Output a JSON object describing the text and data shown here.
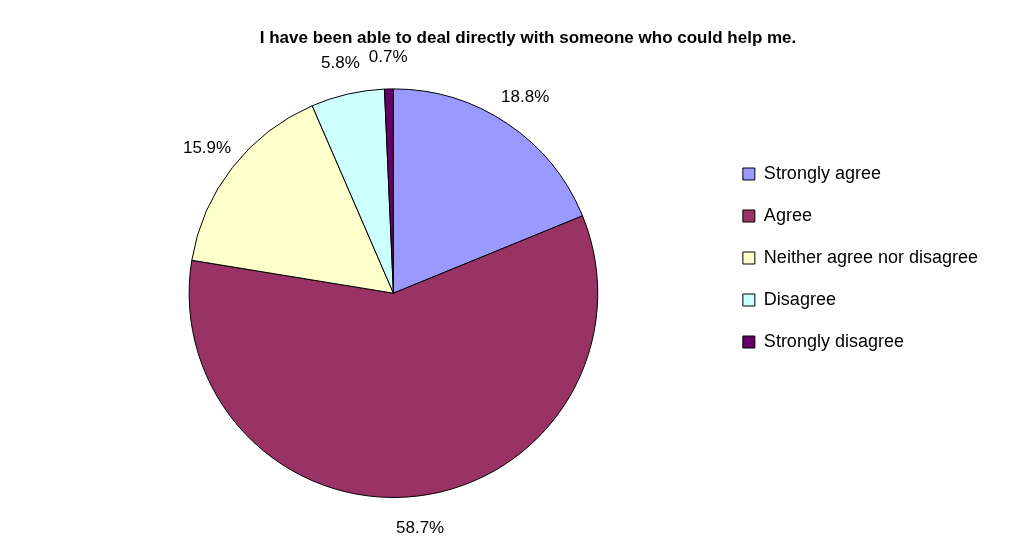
{
  "chart_data": {
    "type": "pie",
    "title": "I have been able to deal directly with someone who could help me.",
    "categories": [
      "Strongly agree",
      "Agree",
      "Neither agree nor disagree",
      "Disagree",
      "Strongly disagree"
    ],
    "values": [
      18.8,
      58.7,
      15.9,
      5.8,
      0.7
    ],
    "value_labels": [
      "18.8%",
      "58.7%",
      "15.9%",
      "5.8%",
      "0.7%"
    ],
    "colors": [
      "#9999ff",
      "#993366",
      "#ffffcc",
      "#ccffff",
      "#660066"
    ],
    "legend": "right"
  }
}
